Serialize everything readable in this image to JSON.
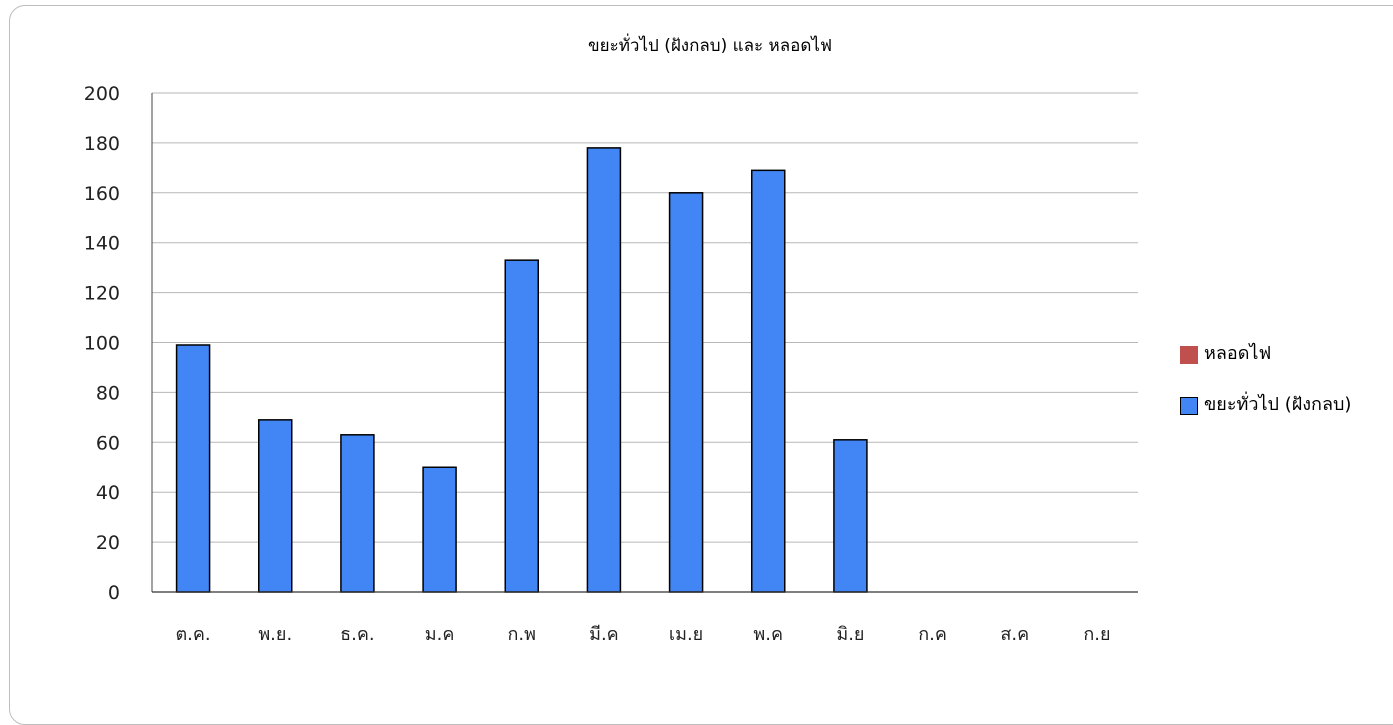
{
  "chart_data": {
    "type": "bar",
    "title": "ขยะทั่วไป (ฝังกลบ) และ หลอดไฟ",
    "xlabel": "",
    "ylabel": "",
    "categories": [
      "ต.ค.",
      "พ.ย.",
      "ธ.ค.",
      "ม.ค",
      "ก.พ",
      "มี.ค",
      "เม.ย",
      "พ.ค",
      "มิ.ย",
      "ก.ค",
      "ส.ค",
      "ก.ย"
    ],
    "series": [
      {
        "name": "หลอดไฟ",
        "color": "#c0504d",
        "values": [
          0,
          0,
          0,
          0,
          0,
          0,
          0,
          0,
          0,
          0,
          0,
          0
        ]
      },
      {
        "name": "ขยะทั่วไป (ฝังกลบ)",
        "color": "#4285f4",
        "values": [
          99,
          69,
          63,
          50,
          133,
          178,
          160,
          169,
          61,
          null,
          null,
          null
        ]
      }
    ],
    "ylim": [
      0,
      200
    ],
    "yticks": [
      0,
      20,
      40,
      60,
      80,
      100,
      120,
      140,
      160,
      180,
      200
    ],
    "grid": true,
    "legend_position": "right"
  }
}
